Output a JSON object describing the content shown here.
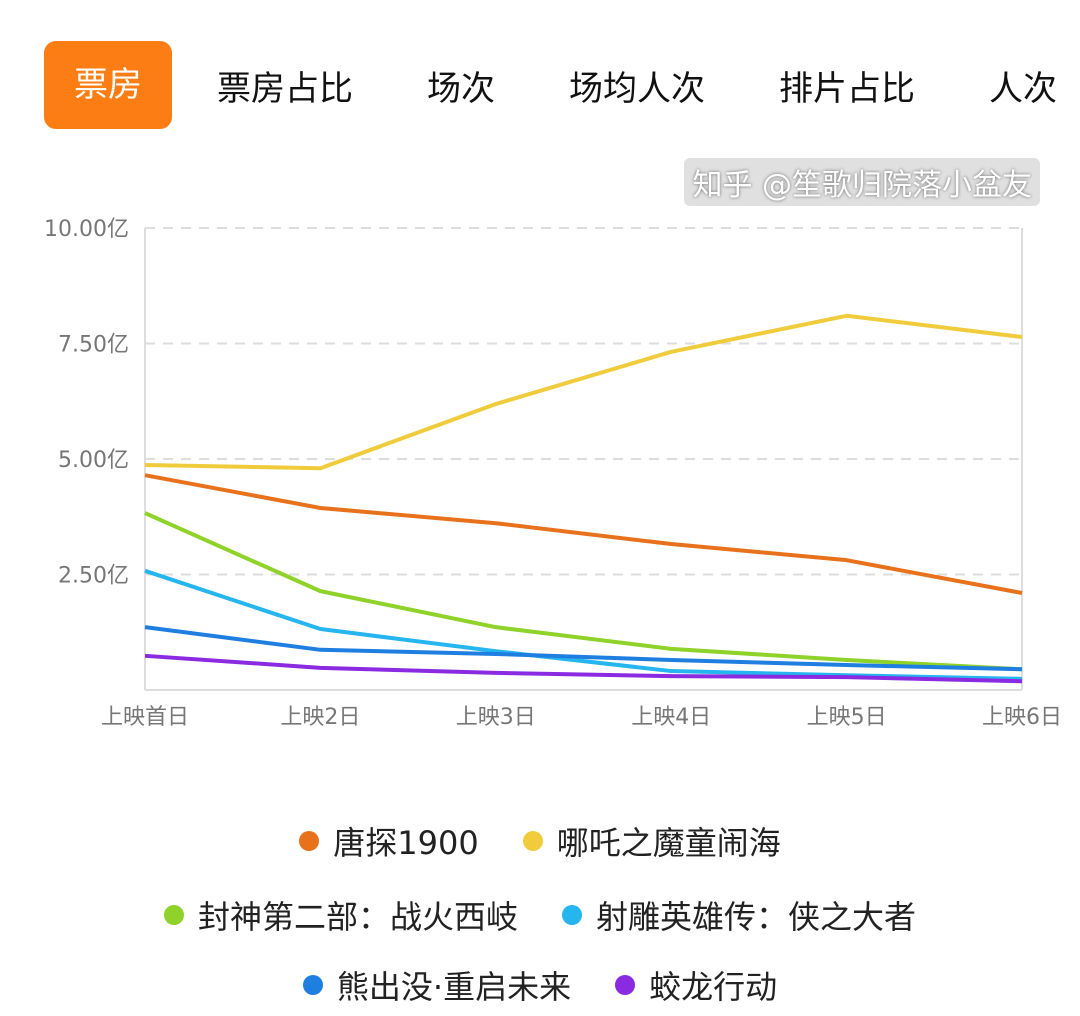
{
  "tabs": [
    {
      "label": "票房",
      "active": true
    },
    {
      "label": "票房占比"
    },
    {
      "label": "场次"
    },
    {
      "label": "场均人次"
    },
    {
      "label": "排片占比"
    },
    {
      "label": "人次"
    }
  ],
  "watermark": "知乎 @笙歌归院落小盆友",
  "chart_data": {
    "type": "line",
    "categories": [
      "上映首日",
      "上映2日",
      "上映3日",
      "上映4日",
      "上映5日",
      "上映6日"
    ],
    "ylim": [
      0,
      10
    ],
    "yticks": [
      {
        "v": 2.5,
        "label": "2.50亿"
      },
      {
        "v": 5,
        "label": "5.00亿"
      },
      {
        "v": 7.5,
        "label": "7.50亿"
      },
      {
        "v": 10,
        "label": "10.00亿"
      }
    ],
    "grid": true,
    "legend": "bottom",
    "series": [
      {
        "name": "唐探1900",
        "color": "#e8711c",
        "values": [
          4.65,
          3.94,
          3.61,
          3.16,
          2.81,
          2.1
        ]
      },
      {
        "name": "哪吒之魔童闹海",
        "color": "#f0cc3c",
        "values": [
          4.87,
          4.8,
          6.19,
          7.32,
          8.1,
          7.64
        ]
      },
      {
        "name": "封神第二部：战火西岐",
        "color": "#8fd22a",
        "values": [
          3.83,
          2.14,
          1.36,
          0.89,
          0.65,
          0.45
        ]
      },
      {
        "name": "射雕英雄传：侠之大者",
        "color": "#25b5ef",
        "values": [
          2.58,
          1.32,
          0.84,
          0.41,
          0.32,
          0.24
        ]
      },
      {
        "name": "熊出没·重启未来",
        "color": "#1f7fe0",
        "values": [
          1.36,
          0.87,
          0.78,
          0.65,
          0.54,
          0.45
        ]
      },
      {
        "name": "蛟龙行动",
        "color": "#8a2be2",
        "values": [
          0.74,
          0.48,
          0.37,
          0.3,
          0.28,
          0.19
        ]
      }
    ]
  }
}
